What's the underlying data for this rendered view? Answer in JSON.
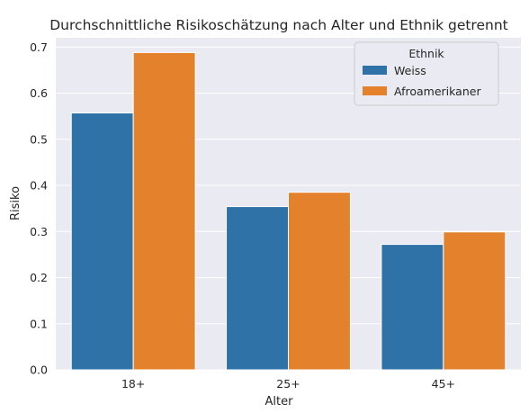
{
  "chart_data": {
    "type": "bar",
    "title": "Durchschnittliche Risikoschätzung nach Alter und Ethnik getrennt",
    "xlabel": "Alter",
    "ylabel": "Risiko",
    "categories": [
      "18+",
      "25+",
      "45+"
    ],
    "series": [
      {
        "name": "Weiss",
        "values": [
          0.557,
          0.354,
          0.272
        ],
        "color": "#2f72a8"
      },
      {
        "name": "Afroamerikaner",
        "values": [
          0.688,
          0.385,
          0.299
        ],
        "color": "#e3812c"
      }
    ],
    "ylim": [
      0,
      0.72
    ],
    "yticks": [
      "0.0",
      "0.1",
      "0.2",
      "0.3",
      "0.4",
      "0.5",
      "0.6",
      "0.7"
    ],
    "grid": true,
    "legend": {
      "title": "Ethnik",
      "placement": "top-right"
    },
    "background": "#eaeaf2"
  }
}
